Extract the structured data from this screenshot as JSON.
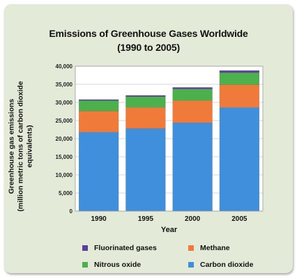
{
  "chart_data": {
    "type": "bar",
    "stacked": true,
    "title": "Emissions of Greenhouse Gases Worldwide",
    "subtitle": "(1990 to 2005)",
    "xlabel": "Year",
    "ylabel": "Greenhouse gas emissions",
    "ylabel2": "(million metric tons of carbon dioxide equivalents)",
    "categories": [
      "1990",
      "1995",
      "2000",
      "2005"
    ],
    "ylim": [
      0,
      40000
    ],
    "yticks": [
      "0",
      "5,000",
      "10,000",
      "15,000",
      "20,000",
      "25,000",
      "30,000",
      "35,000",
      "40,000"
    ],
    "grid": true,
    "legend_position": "bottom",
    "series": [
      {
        "name": "Carbon dioxide",
        "color": "#3f8fdc",
        "values": [
          21800,
          22800,
          24400,
          28600
        ]
      },
      {
        "name": "Methane",
        "color": "#f07a3a",
        "values": [
          5800,
          5800,
          6100,
          6300
        ]
      },
      {
        "name": "Nitrous oxide",
        "color": "#4cb04c",
        "values": [
          2900,
          3000,
          3200,
          3300
        ]
      },
      {
        "name": "Fluorinated gases",
        "color": "#5a3f9c",
        "values": [
          300,
          350,
          450,
          600
        ]
      }
    ],
    "legend_order": [
      "Fluorinated gases",
      "Methane",
      "Nitrous oxide",
      "Carbon dioxide"
    ]
  }
}
